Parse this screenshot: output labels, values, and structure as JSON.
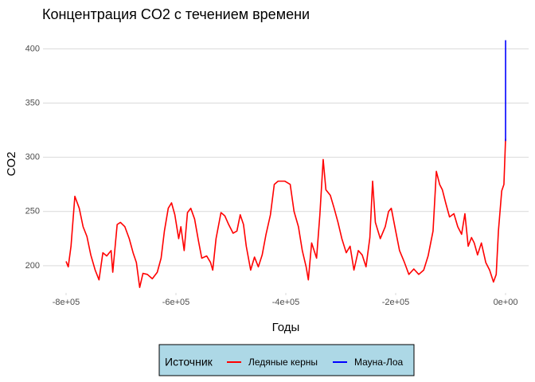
{
  "chart_data": {
    "type": "line",
    "title": "Концентрация CO2 с течением времени",
    "x_label": "Годы",
    "y_label": "CO2",
    "legend_title": "Источник",
    "grid": true,
    "legend_position": "bottom",
    "xlim": [
      -842000,
      42000
    ],
    "ylim": [
      175,
      412
    ],
    "xticks": [
      {
        "value": -800000,
        "label": "-8e+05"
      },
      {
        "value": -600000,
        "label": "-6e+05"
      },
      {
        "value": -400000,
        "label": "-4e+05"
      },
      {
        "value": -200000,
        "label": "-2e+05"
      },
      {
        "value": 0,
        "label": "0e+00"
      }
    ],
    "yticks": [
      200,
      250,
      300,
      350,
      400
    ],
    "series": [
      {
        "name": "Ледяные керны",
        "color": "#ff0000",
        "x": [
          -800000,
          -796000,
          -791000,
          -784000,
          -776000,
          -769000,
          -762000,
          -755000,
          -747000,
          -740000,
          -733000,
          -726000,
          -718000,
          -715000,
          -707000,
          -701000,
          -693000,
          -685000,
          -678000,
          -672000,
          -666000,
          -660000,
          -652000,
          -643000,
          -634000,
          -627000,
          -621000,
          -614000,
          -608000,
          -602000,
          -595000,
          -591000,
          -585000,
          -579000,
          -573000,
          -566000,
          -559000,
          -553000,
          -544000,
          -537000,
          -533000,
          -527000,
          -518000,
          -511000,
          -504000,
          -496000,
          -489000,
          -483000,
          -477000,
          -472000,
          -464000,
          -457000,
          -450000,
          -443000,
          -436000,
          -428000,
          -421000,
          -414000,
          -402000,
          -392000,
          -385000,
          -377000,
          -370000,
          -363000,
          -359000,
          -353000,
          -344000,
          -338000,
          -332000,
          -327000,
          -319000,
          -312000,
          -305000,
          -298000,
          -290000,
          -283000,
          -276000,
          -268000,
          -261000,
          -254000,
          -247000,
          -242000,
          -237000,
          -228000,
          -219000,
          -213000,
          -208000,
          -200000,
          -193000,
          -184000,
          -176000,
          -167000,
          -158000,
          -149000,
          -141000,
          -132000,
          -126000,
          -120000,
          -115000,
          -109000,
          -102000,
          -94000,
          -87000,
          -80000,
          -74000,
          -68000,
          -62000,
          -57000,
          -51000,
          -44000,
          -36000,
          -29000,
          -22000,
          -17000,
          -13000,
          -7000,
          -3000,
          0
        ],
        "values": [
          204,
          199,
          218,
          264,
          253,
          236,
          227,
          210,
          196,
          187,
          212,
          209,
          214,
          194,
          238,
          240,
          236,
          225,
          212,
          203,
          180,
          193,
          192,
          188,
          194,
          207,
          232,
          253,
          258,
          247,
          225,
          236,
          214,
          249,
          253,
          243,
          223,
          207,
          209,
          203,
          196,
          225,
          249,
          246,
          238,
          230,
          232,
          247,
          238,
          218,
          196,
          208,
          199,
          210,
          229,
          247,
          275,
          278,
          278,
          275,
          250,
          236,
          214,
          199,
          187,
          221,
          207,
          247,
          298,
          270,
          265,
          253,
          240,
          225,
          212,
          218,
          196,
          214,
          210,
          199,
          226,
          278,
          240,
          225,
          236,
          250,
          253,
          232,
          214,
          203,
          192,
          197,
          192,
          196,
          209,
          232,
          287,
          275,
          270,
          258,
          245,
          248,
          236,
          229,
          248,
          218,
          226,
          221,
          210,
          221,
          203,
          196,
          185,
          192,
          232,
          269,
          275,
          317
        ]
      },
      {
        "name": "Мауна-Лоа",
        "color": "#0000ff",
        "x": [
          8,
          18,
          28,
          38,
          48,
          58,
          66
        ],
        "values": [
          315,
          325,
          339,
          354,
          370,
          389,
          408
        ]
      }
    ]
  }
}
